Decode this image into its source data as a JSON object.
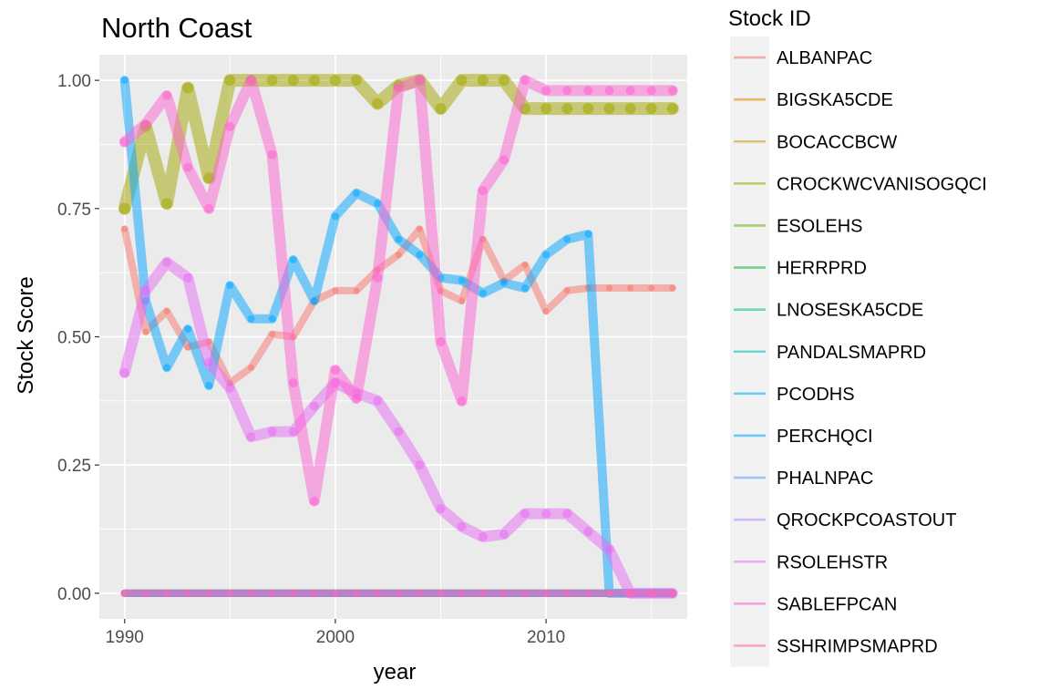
{
  "chart_data": {
    "type": "line",
    "title": "North Coast",
    "xlabel": "year",
    "ylabel": "Stock Score",
    "xlim": [
      1988.8,
      2016.7
    ],
    "ylim": [
      -0.05,
      1.05
    ],
    "xticks": [
      1990,
      2000,
      2010
    ],
    "yticks": [
      0.0,
      0.25,
      0.5,
      0.75,
      1.0
    ],
    "ytick_labels": [
      "0.00",
      "0.25",
      "0.50",
      "0.75",
      "1.00"
    ],
    "grid": true,
    "legend_title": "Stock ID",
    "legend_position": "right",
    "series": [
      {
        "name": "ALBANPAC",
        "color": "#F8766D",
        "width": 8,
        "x": [
          1990,
          1991,
          1992,
          1993,
          1994,
          1995,
          1996,
          1997,
          1998,
          1999,
          2000,
          2001,
          2002,
          2003,
          2004,
          2005,
          2006,
          2007,
          2008,
          2009,
          2010,
          2011,
          2012,
          2013,
          2014,
          2015,
          2016
        ],
        "y": [
          0.71,
          0.51,
          0.55,
          0.48,
          0.49,
          0.41,
          0.44,
          0.505,
          0.5,
          0.57,
          0.59,
          0.59,
          0.63,
          0.66,
          0.71,
          0.59,
          0.57,
          0.69,
          0.61,
          0.64,
          0.55,
          0.59,
          0.595,
          0.595,
          0.595,
          0.595,
          0.595
        ]
      },
      {
        "name": "BIGSKA5CDE",
        "color": "#E58700",
        "width": 8,
        "x": [
          1990,
          1991,
          1992,
          1993,
          1994,
          1995,
          1996,
          1997,
          1998,
          1999,
          2000,
          2001,
          2002,
          2003,
          2004,
          2005,
          2006,
          2007,
          2008,
          2009,
          2010,
          2011,
          2012,
          2013,
          2014,
          2015,
          2016
        ],
        "y": [
          0,
          0,
          0,
          0,
          0,
          0,
          0,
          0,
          0,
          0,
          0,
          0,
          0,
          0,
          0,
          0,
          0,
          0,
          0,
          0,
          0,
          0,
          0,
          0,
          0,
          0,
          0
        ]
      },
      {
        "name": "BOCACCBCW",
        "color": "#C99800",
        "width": 8,
        "x": [
          1990,
          1991,
          1992,
          1993,
          1994,
          1995,
          1996,
          1997,
          1998,
          1999,
          2000,
          2001,
          2002,
          2003,
          2004,
          2005,
          2006,
          2007,
          2008,
          2009,
          2010,
          2011,
          2012,
          2013,
          2014,
          2015,
          2016
        ],
        "y": [
          0,
          0,
          0,
          0,
          0,
          0,
          0,
          0,
          0,
          0,
          0,
          0,
          0,
          0,
          0,
          0,
          0,
          0,
          0,
          0,
          0,
          0,
          0,
          0,
          0,
          0,
          0
        ]
      },
      {
        "name": "CROCKWCVANISOGQCI",
        "color": "#A3A500",
        "width": 14,
        "x": [
          1990,
          1991,
          1992,
          1993,
          1994,
          1995,
          1996,
          1997,
          1998,
          1999,
          2000,
          2001,
          2002,
          2003,
          2004,
          2005,
          2006,
          2007,
          2008,
          2009,
          2010,
          2011,
          2012,
          2013,
          2014,
          2015,
          2016
        ],
        "y": [
          0.75,
          0.91,
          0.76,
          0.985,
          0.81,
          1.0,
          1.0,
          1.0,
          1.0,
          1.0,
          1.0,
          1.0,
          0.955,
          0.99,
          1.0,
          0.945,
          1.0,
          1.0,
          1.0,
          0.945,
          0.945,
          0.945,
          0.945,
          0.945,
          0.945,
          0.945,
          0.945
        ]
      },
      {
        "name": "ESOLEHS",
        "color": "#6BB100",
        "width": 8,
        "x": [
          1990,
          1991,
          1992,
          1993,
          1994,
          1995,
          1996,
          1997,
          1998,
          1999,
          2000,
          2001,
          2002,
          2003,
          2004,
          2005,
          2006,
          2007,
          2008,
          2009,
          2010,
          2011,
          2012,
          2013,
          2014,
          2015,
          2016
        ],
        "y": [
          0,
          0,
          0,
          0,
          0,
          0,
          0,
          0,
          0,
          0,
          0,
          0,
          0,
          0,
          0,
          0,
          0,
          0,
          0,
          0,
          0,
          0,
          0,
          0,
          0,
          0,
          0
        ]
      },
      {
        "name": "HERRPRD",
        "color": "#00BA38",
        "width": 8,
        "x": [
          1990,
          1991,
          1992,
          1993,
          1994,
          1995,
          1996,
          1997,
          1998,
          1999,
          2000,
          2001,
          2002,
          2003,
          2004,
          2005,
          2006,
          2007,
          2008,
          2009,
          2010,
          2011,
          2012,
          2013,
          2014,
          2015,
          2016
        ],
        "y": [
          0,
          0,
          0,
          0,
          0,
          0,
          0,
          0,
          0,
          0,
          0,
          0,
          0,
          0,
          0,
          0,
          0,
          0,
          0,
          0,
          0,
          0,
          0,
          0,
          0,
          0,
          0
        ]
      },
      {
        "name": "LNOSESKA5CDE",
        "color": "#00BF7D",
        "width": 8,
        "x": [
          1990,
          1991,
          1992,
          1993,
          1994,
          1995,
          1996,
          1997,
          1998,
          1999,
          2000,
          2001,
          2002,
          2003,
          2004,
          2005,
          2006,
          2007,
          2008,
          2009,
          2010,
          2011,
          2012,
          2013,
          2014,
          2015,
          2016
        ],
        "y": [
          0,
          0,
          0,
          0,
          0,
          0,
          0,
          0,
          0,
          0,
          0,
          0,
          0,
          0,
          0,
          0,
          0,
          0,
          0,
          0,
          0,
          0,
          0,
          0,
          0,
          0,
          0
        ]
      },
      {
        "name": "PANDALSMAPRD",
        "color": "#00C0B8",
        "width": 8,
        "x": [
          1990,
          1991,
          1992,
          1993,
          1994,
          1995,
          1996,
          1997,
          1998,
          1999,
          2000,
          2001,
          2002,
          2003,
          2004,
          2005,
          2006,
          2007,
          2008,
          2009,
          2010,
          2011,
          2012,
          2013,
          2014,
          2015,
          2016
        ],
        "y": [
          0,
          0,
          0,
          0,
          0,
          0,
          0,
          0,
          0,
          0,
          0,
          0,
          0,
          0,
          0,
          0,
          0,
          0,
          0,
          0,
          0,
          0,
          0,
          0,
          0,
          0,
          0
        ]
      },
      {
        "name": "PCODHS",
        "color": "#00B0F6",
        "width": 8,
        "x": [
          1990,
          1991,
          1992,
          1993,
          1994,
          1995,
          1996,
          1997,
          1998,
          1999,
          2000,
          2001,
          2002,
          2003,
          2004,
          2005,
          2006,
          2007,
          2008,
          2009,
          2010,
          2011,
          2012,
          2013,
          2014,
          2015,
          2016
        ],
        "y": [
          0,
          0,
          0,
          0,
          0,
          0,
          0,
          0,
          0,
          0,
          0,
          0,
          0,
          0,
          0,
          0,
          0,
          0,
          0,
          0,
          0,
          0,
          0,
          0,
          0,
          0,
          0
        ]
      },
      {
        "name": "PERCHQCI",
        "color": "#00A5FF",
        "width": 10,
        "x": [
          1990,
          1991,
          1992,
          1993,
          1994,
          1995,
          1996,
          1997,
          1998,
          1999,
          2000,
          2001,
          2002,
          2003,
          2004,
          2005,
          2006,
          2007,
          2008,
          2009,
          2010,
          2011,
          2012,
          2013,
          2014,
          2015,
          2016
        ],
        "y": [
          1.0,
          0.57,
          0.44,
          0.515,
          0.405,
          0.6,
          0.535,
          0.535,
          0.65,
          0.57,
          0.735,
          0.78,
          0.76,
          0.69,
          0.66,
          0.615,
          0.61,
          0.585,
          0.605,
          0.595,
          0.66,
          0.69,
          0.7,
          0,
          0,
          0,
          0
        ]
      },
      {
        "name": "PHALNPAC",
        "color": "#619CFF",
        "width": 8,
        "x": [
          1990,
          1991,
          1992,
          1993,
          1994,
          1995,
          1996,
          1997,
          1998,
          1999,
          2000,
          2001,
          2002,
          2003,
          2004,
          2005,
          2006,
          2007,
          2008,
          2009,
          2010,
          2011,
          2012,
          2013,
          2014,
          2015,
          2016
        ],
        "y": [
          0,
          0,
          0,
          0,
          0,
          0,
          0,
          0,
          0,
          0,
          0,
          0,
          0,
          0,
          0,
          0,
          0,
          0,
          0,
          0,
          0,
          0,
          0,
          0,
          0,
          0,
          0
        ]
      },
      {
        "name": "QROCKPCOASTOUT",
        "color": "#B983FF",
        "width": 8,
        "x": [
          1990,
          1991,
          1992,
          1993,
          1994,
          1995,
          1996,
          1997,
          1998,
          1999,
          2000,
          2001,
          2002,
          2003,
          2004,
          2005,
          2006,
          2007,
          2008,
          2009,
          2010,
          2011,
          2012,
          2013,
          2014,
          2015,
          2016
        ],
        "y": [
          0,
          0,
          0,
          0,
          0,
          0,
          0,
          0,
          0,
          0,
          0,
          0,
          0,
          0,
          0,
          0,
          0,
          0,
          0,
          0,
          0,
          0,
          0,
          0,
          0,
          0,
          0
        ]
      },
      {
        "name": "RSOLEHSTR",
        "color": "#E76BF3",
        "width": 12,
        "x": [
          1990,
          1991,
          1992,
          1993,
          1994,
          1995,
          1996,
          1997,
          1998,
          1999,
          2000,
          2001,
          2002,
          2003,
          2004,
          2005,
          2006,
          2007,
          2008,
          2009,
          2010,
          2011,
          2012,
          2013,
          2014,
          2015,
          2016
        ],
        "y": [
          0.43,
          0.59,
          0.645,
          0.615,
          0.45,
          0.4,
          0.305,
          0.315,
          0.315,
          0.365,
          0.41,
          0.39,
          0.375,
          0.315,
          0.25,
          0.165,
          0.13,
          0.11,
          0.115,
          0.155,
          0.155,
          0.155,
          0.12,
          0.085,
          0,
          0,
          0
        ]
      },
      {
        "name": "SABLEFPCAN",
        "color": "#FD61D1",
        "width": 12,
        "x": [
          1990,
          1991,
          1992,
          1993,
          1994,
          1995,
          1996,
          1997,
          1998,
          1999,
          2000,
          2001,
          2002,
          2003,
          2004,
          2005,
          2006,
          2007,
          2008,
          2009,
          2010,
          2011,
          2012,
          2013,
          2014,
          2015,
          2016
        ],
        "y": [
          0.88,
          0.915,
          0.97,
          0.83,
          0.75,
          0.91,
          1.0,
          0.855,
          0.41,
          0.18,
          0.435,
          0.38,
          0.615,
          0.985,
          1.0,
          0.49,
          0.375,
          0.785,
          0.845,
          1.0,
          0.98,
          0.98,
          0.98,
          0.98,
          0.98,
          0.98,
          0.98
        ]
      },
      {
        "name": "SSHRIMPSMAPRD",
        "color": "#FF67A4",
        "width": 8,
        "x": [
          1990,
          1991,
          1992,
          1993,
          1994,
          1995,
          1996,
          1997,
          1998,
          1999,
          2000,
          2001,
          2002,
          2003,
          2004,
          2005,
          2006,
          2007,
          2008,
          2009,
          2010,
          2011,
          2012,
          2013,
          2014,
          2015,
          2016
        ],
        "y": [
          0,
          0,
          0,
          0,
          0,
          0,
          0,
          0,
          0,
          0,
          0,
          0,
          0,
          0,
          0,
          0,
          0,
          0,
          0,
          0,
          0,
          0,
          0,
          0,
          0,
          0,
          0
        ]
      }
    ]
  }
}
